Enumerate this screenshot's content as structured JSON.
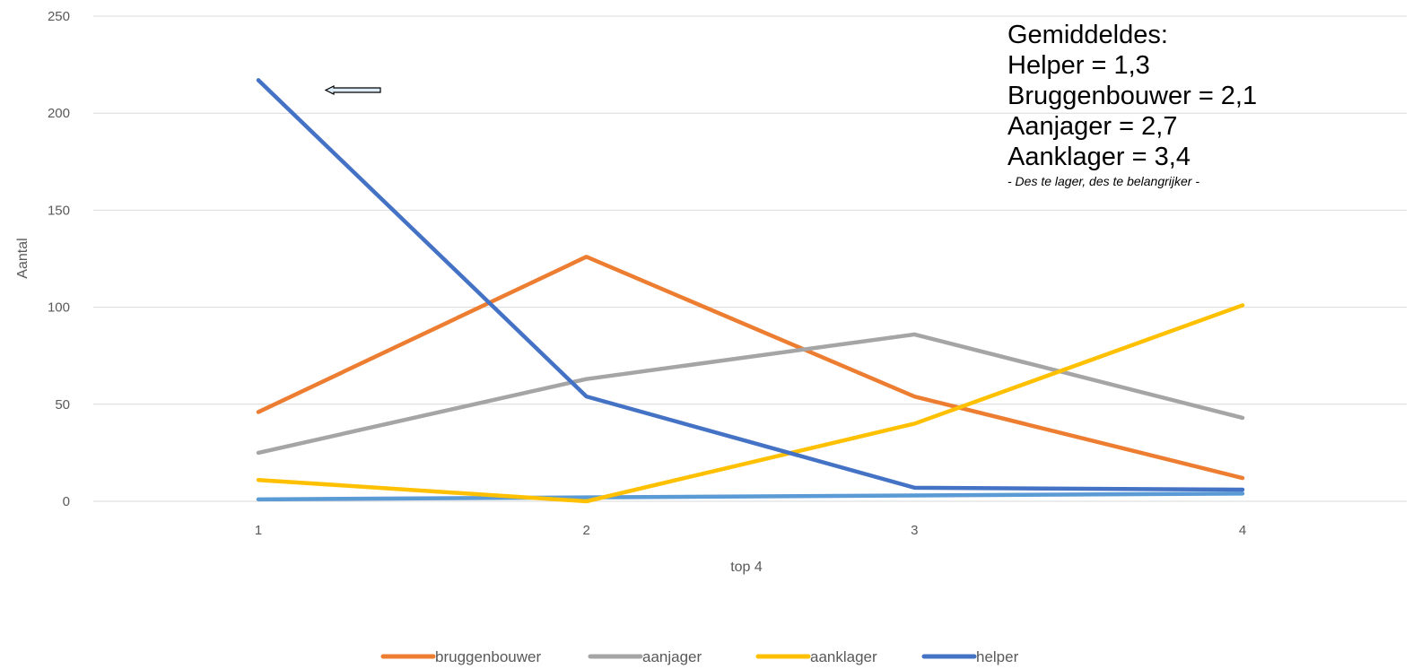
{
  "chart_data": {
    "type": "line",
    "x": [
      1,
      2,
      3,
      4
    ],
    "xlabel": "top 4",
    "ylabel": "Aantal",
    "ylim": [
      0,
      250
    ],
    "yticks": [
      0,
      50,
      100,
      150,
      200,
      250
    ],
    "grid": "horizontal",
    "legend_position": "bottom",
    "series": [
      {
        "name": "bruggenbouwer",
        "color": "#ED7D31",
        "values": [
          46,
          126,
          54,
          12
        ]
      },
      {
        "name": "aanjager",
        "color": "#A5A5A5",
        "values": [
          25,
          63,
          86,
          43
        ]
      },
      {
        "name": "aanklager",
        "color": "#FFC000",
        "values": [
          11,
          0,
          40,
          101
        ]
      },
      {
        "name": "helper",
        "color": "#4472C4",
        "values": [
          217,
          54,
          7,
          6
        ]
      },
      {
        "name": "",
        "color": "#5B9BD5",
        "values": [
          1,
          2,
          3,
          4
        ]
      }
    ]
  },
  "annotation": {
    "lines": [
      "Gemiddeldes:",
      "Helper = 1,3",
      "Bruggenbouwer = 2,1",
      "Aanjager = 2,7",
      "Aanklager = 3,4"
    ],
    "note": "- Des te lager, des te belangrijker -",
    "arrow_icon": "left-arrow-icon"
  }
}
